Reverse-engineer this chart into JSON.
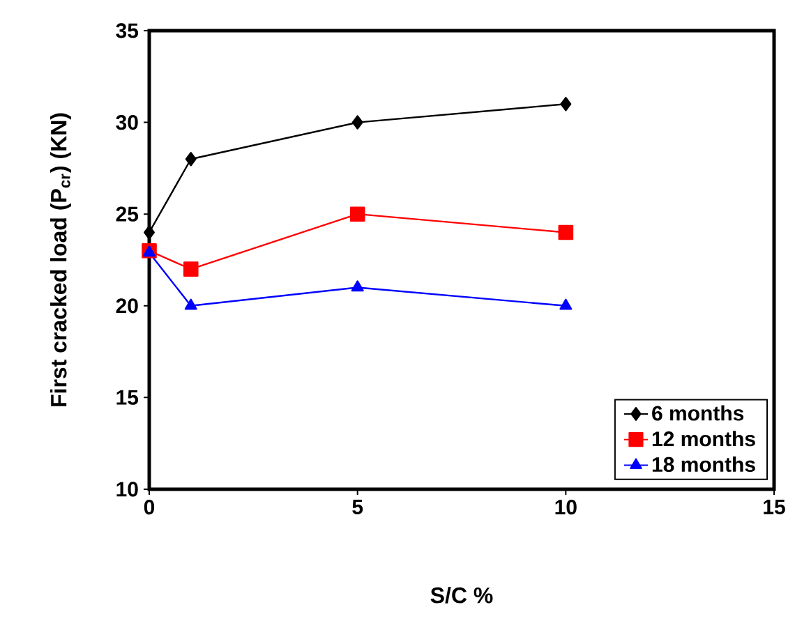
{
  "chart_data": {
    "type": "line",
    "xlabel": "S/C %",
    "ylabel": "First cracked load (P$_{cr}$) (KN)",
    "x": [
      0,
      1,
      5,
      10
    ],
    "series": [
      {
        "name": "6 months",
        "color": "#000000",
        "marker": "diamond",
        "values": [
          24,
          28,
          30,
          31
        ]
      },
      {
        "name": "12 months",
        "color": "#ff0000",
        "marker": "square",
        "values": [
          23,
          22,
          25,
          24
        ]
      },
      {
        "name": "18 months",
        "color": "#0000ff",
        "marker": "triangle",
        "values": [
          22.9,
          20,
          21,
          20
        ]
      }
    ],
    "xlim": [
      0,
      15
    ],
    "ylim": [
      10,
      35
    ],
    "xticks": [
      0,
      5,
      10,
      15
    ],
    "yticks": [
      10,
      15,
      20,
      25,
      30,
      35
    ],
    "grid": false,
    "legend": "bottom right",
    "line_style": "solid"
  }
}
